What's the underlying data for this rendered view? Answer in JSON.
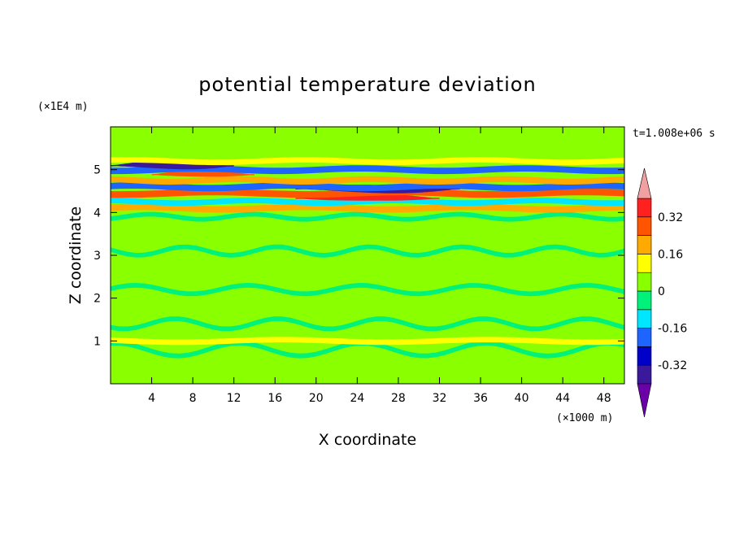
{
  "chart_data": {
    "type": "heatmap",
    "title": "potential temperature deviation",
    "xlabel": "X coordinate",
    "ylabel": "Z coordinate",
    "x_unit": "(×1000 m)",
    "y_unit": "(×1E4 m)",
    "time_label": "t=1.008e+06 s",
    "xlim": [
      0,
      50
    ],
    "ylim": [
      0,
      6
    ],
    "x_ticks": [
      4,
      8,
      12,
      16,
      20,
      24,
      28,
      32,
      36,
      40,
      44,
      48
    ],
    "y_ticks": [
      1,
      2,
      3,
      4,
      5
    ],
    "colorbar": {
      "levels": [
        -0.4,
        -0.32,
        -0.24,
        -0.16,
        -0.08,
        0,
        0.08,
        0.16,
        0.24,
        0.32,
        0.4
      ],
      "tick_labels": [
        "0.32",
        "0.16",
        "0",
        "-0.16",
        "-0.32"
      ],
      "tick_values": [
        0.32,
        0.16,
        0,
        -0.16,
        -0.32
      ],
      "colors": [
        "#6a00a8",
        "#3a1a9a",
        "#0000c8",
        "#1e64ff",
        "#00e6ff",
        "#00f27a",
        "#8aff00",
        "#ffff00",
        "#ffaa00",
        "#ff5500",
        "#ff2020",
        "#f0a0a0"
      ]
    },
    "bands": [
      {
        "z": 0.4,
        "value": 0.04,
        "x_start": 0,
        "x_end": 50,
        "amp": 0.18,
        "wavelength": 14
      },
      {
        "z": 0.8,
        "value": -0.04,
        "x_start": 0,
        "x_end": 50,
        "amp": 0.15,
        "wavelength": 12
      },
      {
        "z": 1.0,
        "value": 0.12,
        "x_start": 0,
        "x_end": 50,
        "amp": 0.03,
        "wavelength": 20
      },
      {
        "z": 1.4,
        "value": -0.04,
        "x_start": 0,
        "x_end": 50,
        "amp": 0.12,
        "wavelength": 10
      },
      {
        "z": 1.8,
        "value": 0.04,
        "x_start": 0,
        "x_end": 50,
        "amp": 0.1,
        "wavelength": 9
      },
      {
        "z": 2.2,
        "value": -0.04,
        "x_start": 0,
        "x_end": 50,
        "amp": 0.1,
        "wavelength": 11
      },
      {
        "z": 2.7,
        "value": 0.04,
        "x_start": 0,
        "x_end": 50,
        "amp": 0.1,
        "wavelength": 13
      },
      {
        "z": 3.1,
        "value": -0.04,
        "x_start": 0,
        "x_end": 50,
        "amp": 0.1,
        "wavelength": 9
      },
      {
        "z": 3.5,
        "value": 0.04,
        "x_start": 0,
        "x_end": 50,
        "amp": 0.08,
        "wavelength": 12
      },
      {
        "z": 3.9,
        "value": -0.04,
        "x_start": 0,
        "x_end": 50,
        "amp": 0.06,
        "wavelength": 10
      },
      {
        "z": 4.1,
        "value": 0.2,
        "x_start": 0,
        "x_end": 50,
        "amp": 0.03,
        "wavelength": 16
      },
      {
        "z": 4.25,
        "value": -0.12,
        "x_start": 0,
        "x_end": 50,
        "amp": 0.03,
        "wavelength": 14
      },
      {
        "z": 4.35,
        "value": 0.36,
        "x_start": 18,
        "x_end": 32,
        "amp": 0.02,
        "wavelength": 14
      },
      {
        "z": 4.45,
        "value": 0.24,
        "x_start": 0,
        "x_end": 50,
        "amp": 0.03,
        "wavelength": 18
      },
      {
        "z": 4.55,
        "value": -0.36,
        "x_start": 18,
        "x_end": 34,
        "amp": 0.02,
        "wavelength": 16
      },
      {
        "z": 4.6,
        "value": -0.2,
        "x_start": 0,
        "x_end": 50,
        "amp": 0.03,
        "wavelength": 15
      },
      {
        "z": 4.75,
        "value": 0.16,
        "x_start": 0,
        "x_end": 50,
        "amp": 0.03,
        "wavelength": 13
      },
      {
        "z": 4.9,
        "value": 0.28,
        "x_start": 4,
        "x_end": 14,
        "amp": 0.02,
        "wavelength": 12
      },
      {
        "z": 5.0,
        "value": -0.2,
        "x_start": 0,
        "x_end": 50,
        "amp": 0.03,
        "wavelength": 16
      },
      {
        "z": 5.1,
        "value": -0.36,
        "x_start": 0,
        "x_end": 12,
        "amp": 0.02,
        "wavelength": 12
      },
      {
        "z": 5.2,
        "value": 0.12,
        "x_start": 0,
        "x_end": 50,
        "amp": 0.03,
        "wavelength": 17
      },
      {
        "z": 5.5,
        "value": 0.04,
        "x_start": 0,
        "x_end": 15,
        "amp": 0.08,
        "wavelength": 10
      },
      {
        "z": 5.5,
        "value": 0.04,
        "x_start": 40,
        "x_end": 50,
        "amp": 0.08,
        "wavelength": 10
      }
    ]
  }
}
